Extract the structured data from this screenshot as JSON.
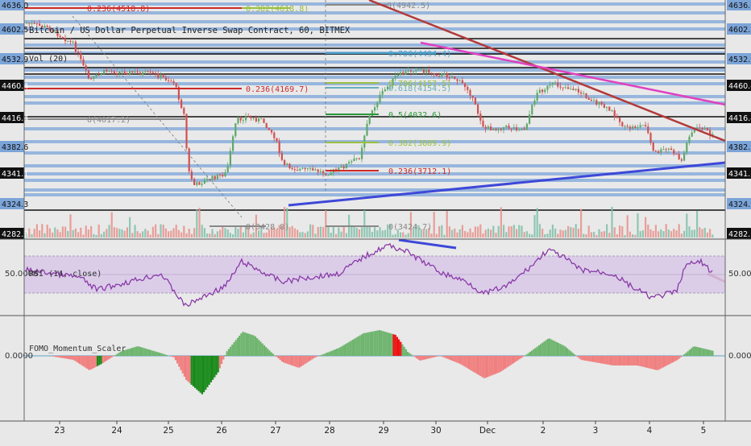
{
  "chart_data": [
    {
      "type": "line",
      "panel": "price",
      "title": "Bitcoin / US Dollar Perpetual Inverse Swap Contract, 60, BITMEX",
      "indicator_label": "Vol (20)",
      "price_axis_labels": [
        "4636.0",
        "4602.5",
        "4532.9",
        "4460.4",
        "4416.4",
        "4382.6",
        "4341.1",
        "4324.3",
        "4282.3"
      ],
      "x_tick_labels": [
        "23",
        "24",
        "25",
        "26",
        "27",
        "28",
        "29",
        "30",
        "Dec",
        "2",
        "3",
        "4",
        "5"
      ],
      "fib_labels": [
        "0.236(4518.8)",
        "0.382(4618.8)",
        "0(4942.5)",
        "0.786(4494.4)",
        "0.236(4169.7)",
        "0.618(4154.5)",
        "0.786(4157.5)",
        "0.5(4032.6)",
        "0(4017.2)",
        "0.382(3889.9)",
        "0.236(3712.1)",
        "0(3428.8)",
        "0(3424.7)"
      ],
      "colors": {
        "background": "#e8e8e8",
        "level_band": "#7ba4d8",
        "trend_down": "#b23a3a",
        "trend_magenta": "#e040c0",
        "trend_blue": "#3d48d8"
      }
    },
    {
      "type": "line",
      "panel": "rsi",
      "title": "RSI (14, close)",
      "value_label": "50.0000",
      "band": [
        30,
        70
      ],
      "colors": {
        "line": "#8a3aa8",
        "band": "#d8c8e8"
      }
    },
    {
      "type": "area",
      "panel": "momentum",
      "title": "FOMO_Momentum_Scaler",
      "value_label": "0.0000",
      "colors": {
        "positive": "#6fb56f",
        "negative": "#f08080",
        "strong_positive": "#1a8a1a",
        "strong_negative": "#ee1111"
      }
    }
  ]
}
